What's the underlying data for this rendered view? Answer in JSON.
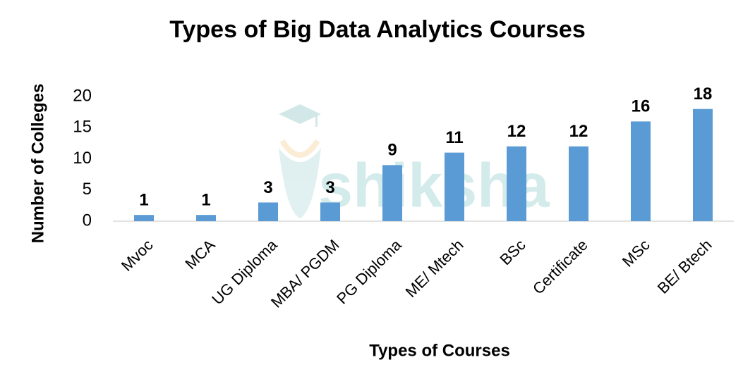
{
  "chart_data": {
    "type": "bar",
    "title": "Types of Big Data Analytics Courses",
    "x_label": "Types of Courses",
    "y_label": "Number of Colleges",
    "watermark": "shiksha",
    "categories": [
      "Mvoc",
      "MCA",
      "UG Diploma",
      "MBA/ PGDM",
      "PG Diploma",
      "ME/ Mtech",
      "BSc",
      "Certificate",
      "MSc",
      "BE/ Btech"
    ],
    "values": [
      1,
      1,
      3,
      3,
      9,
      11,
      12,
      12,
      16,
      18
    ],
    "color": "#5b9bd5",
    "ylim": [
      0,
      20
    ],
    "yticks": [
      0,
      5,
      10,
      15,
      20
    ],
    "grid": false
  }
}
